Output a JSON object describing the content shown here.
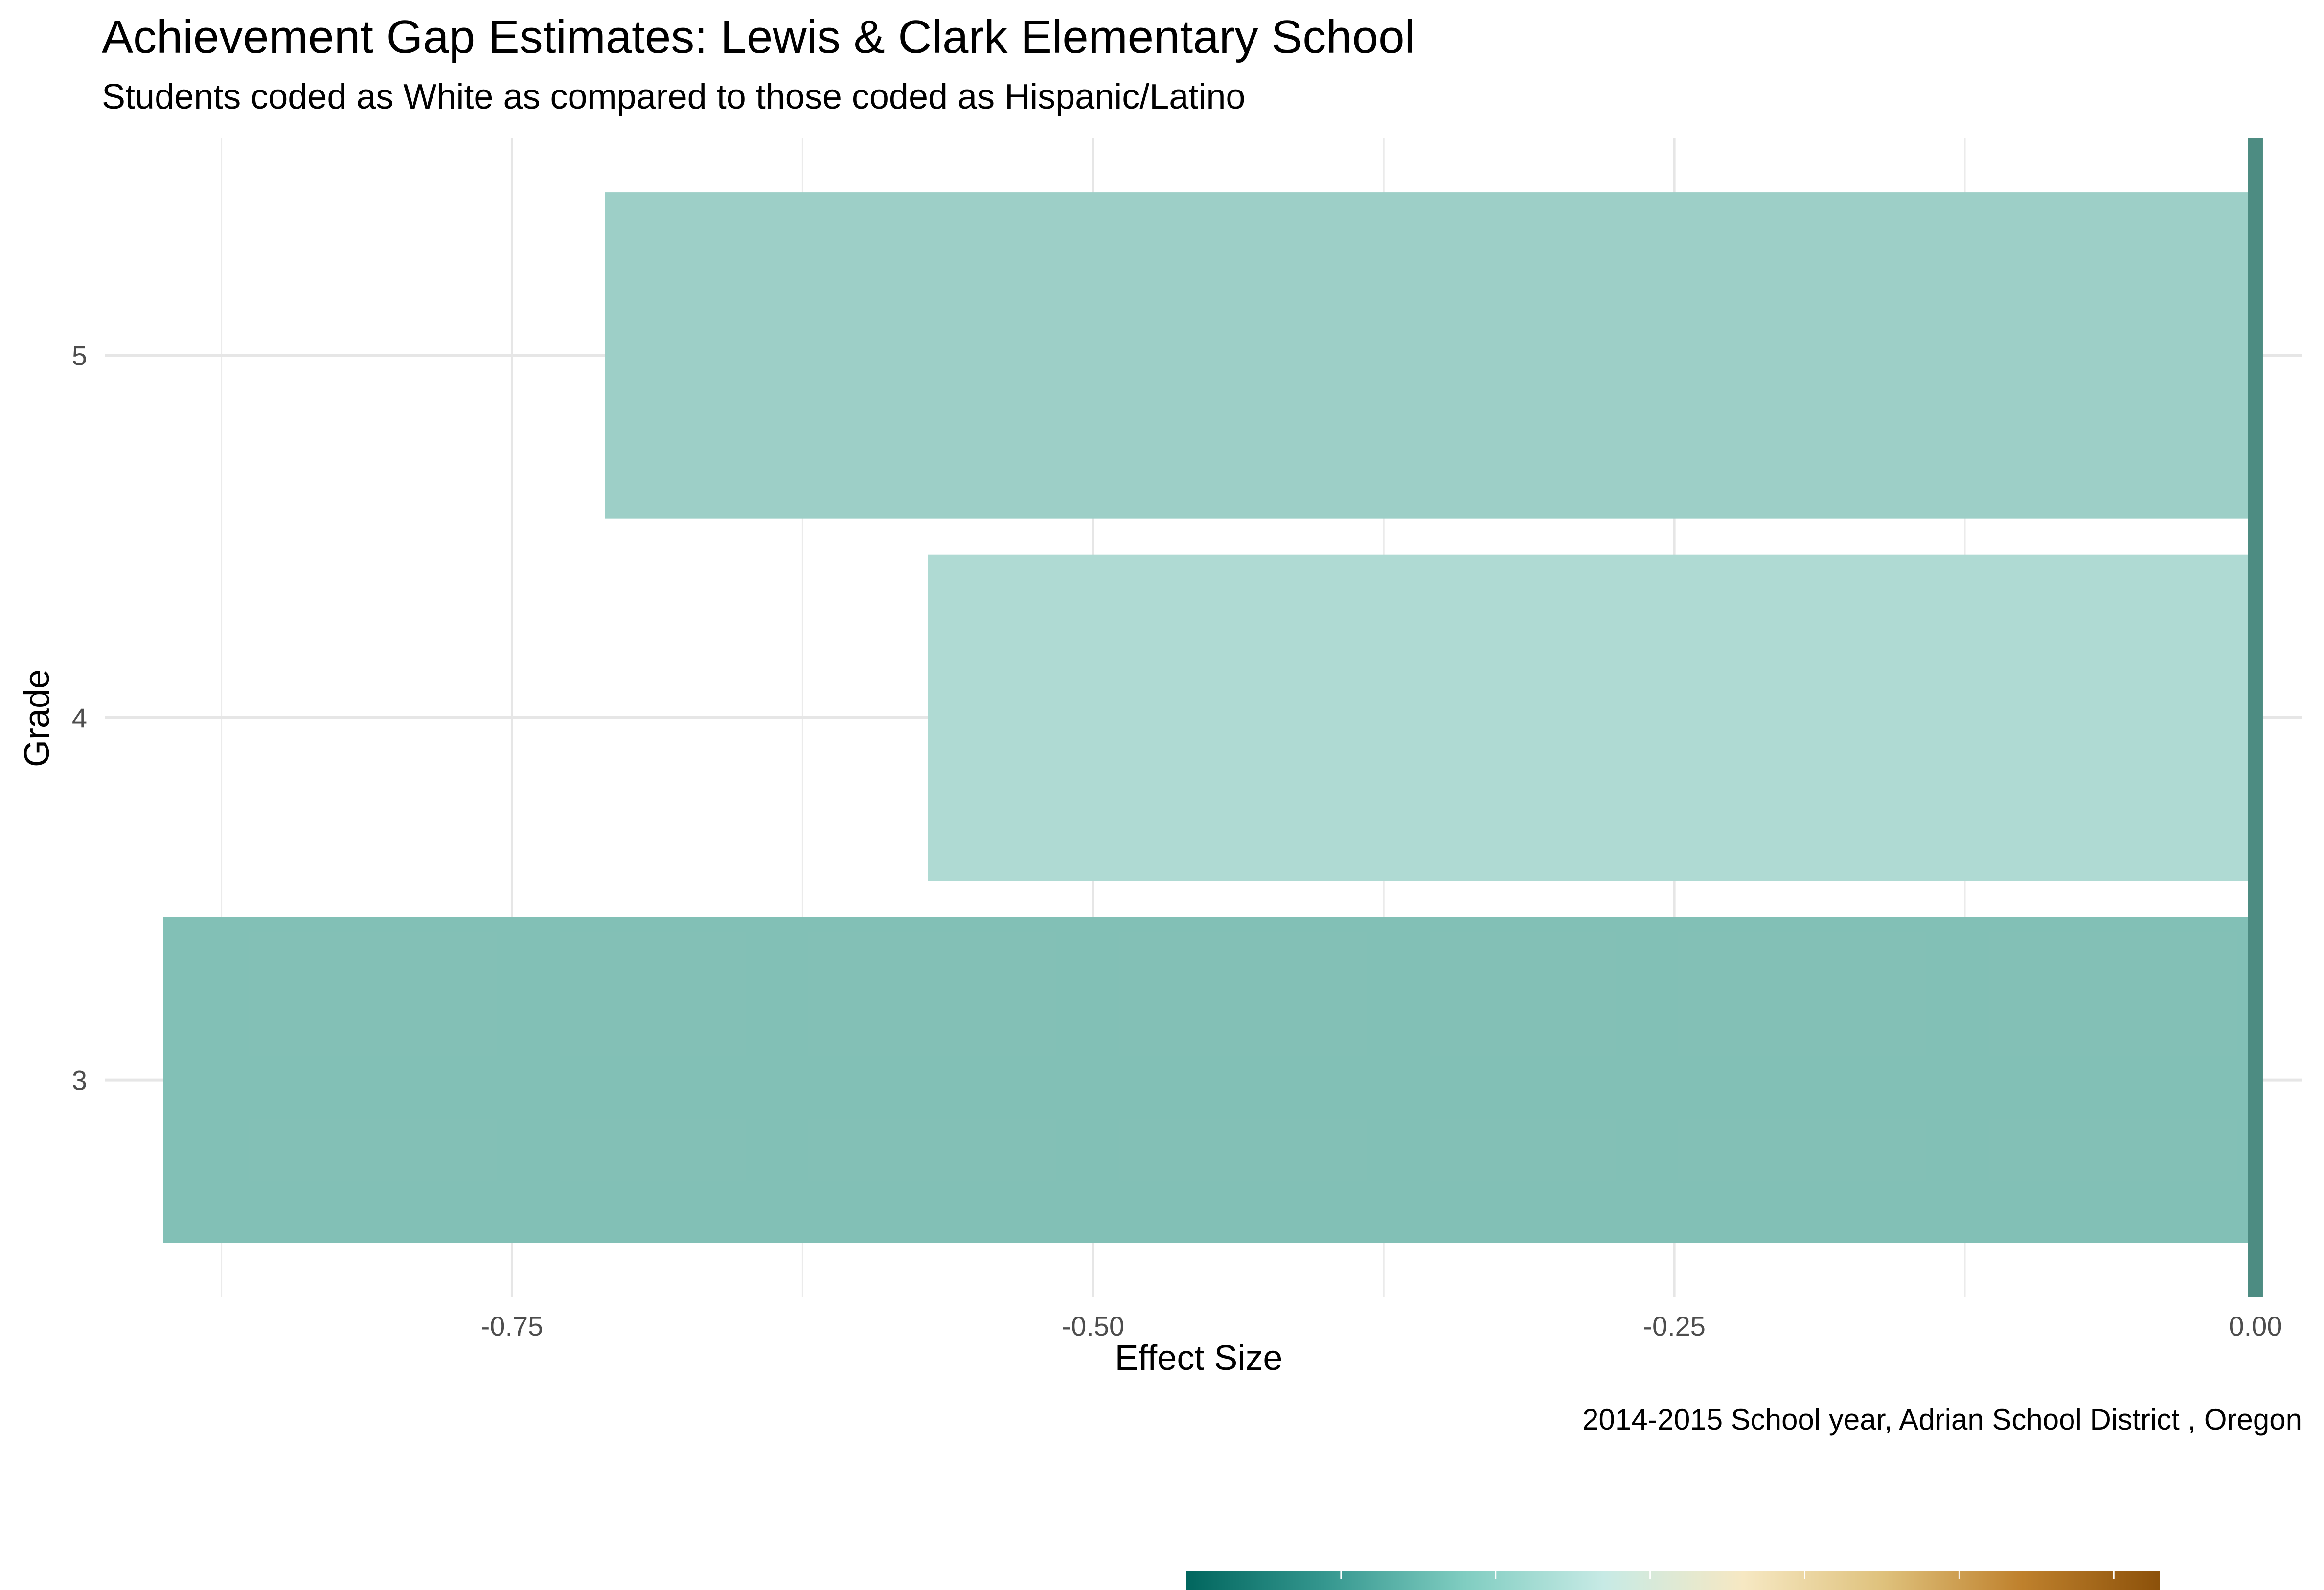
{
  "chart_data": {
    "type": "bar",
    "orientation": "horizontal",
    "title": "Achievement Gap Estimates: Lewis & Clark Elementary School",
    "subtitle": "Students coded as White as compared to those coded as Hispanic/Latino",
    "caption": "2014-2015 School year,  Adrian School District , Oregon",
    "xlabel": "Effect Size",
    "ylabel": "Grade",
    "categories": [
      "3",
      "4",
      "5"
    ],
    "values": [
      -0.9,
      -0.571,
      -0.71
    ],
    "bar_colors": [
      "#80bfb5",
      "#add9d2",
      "#9bcec6"
    ],
    "xlim": [
      -0.925,
      0.02
    ],
    "x_ticks": [
      -0.75,
      -0.5,
      -0.25,
      0.0
    ],
    "x_tick_labels": [
      "-0.75",
      "-0.50",
      "-0.25",
      "0.00"
    ],
    "reference_line": 0.0,
    "reference_line_color": "#4d8c82",
    "grid": true,
    "colorbar_stops": [
      "#01665e",
      "#35978f",
      "#80cdc1",
      "#c7eae5",
      "#f6e8c3",
      "#dfc27d",
      "#bf812d",
      "#8c510a"
    ]
  }
}
